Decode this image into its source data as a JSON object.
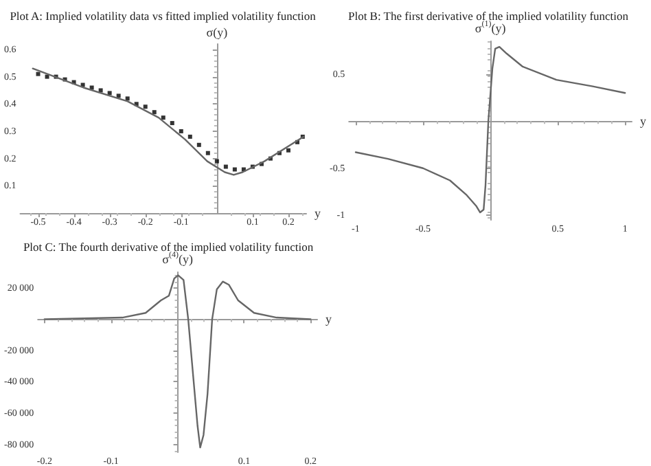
{
  "chart_data": [
    {
      "type": "scatter",
      "title": "Plot A: Implied volatility data vs fitted implied volatility function",
      "xlabel": "y",
      "ylabel": "σ(y)",
      "xlim": [
        -0.55,
        0.25
      ],
      "ylim": [
        0,
        0.62
      ],
      "xticks": [
        -0.5,
        -0.4,
        -0.3,
        -0.2,
        -0.1,
        0.1,
        0.2
      ],
      "yticks": [
        0.1,
        0.2,
        0.3,
        0.4,
        0.5,
        0.6
      ],
      "grid": false,
      "series": [
        {
          "marker": "square",
          "color": "#000000",
          "x": [
            -0.5,
            -0.475,
            -0.45,
            -0.425,
            -0.4,
            -0.375,
            -0.35,
            -0.325,
            -0.3,
            -0.275,
            -0.25,
            -0.225,
            -0.2,
            -0.175,
            -0.15,
            -0.125,
            -0.1,
            -0.075,
            -0.05,
            -0.025,
            0,
            0.025,
            0.05,
            0.075,
            0.1,
            0.125,
            0.15,
            0.175,
            0.2,
            0.225,
            0.24
          ],
          "values": [
            0.51,
            0.5,
            0.5,
            0.49,
            0.48,
            0.47,
            0.46,
            0.45,
            0.44,
            0.43,
            0.42,
            0.4,
            0.39,
            0.37,
            0.35,
            0.33,
            0.3,
            0.28,
            0.25,
            0.22,
            0.19,
            0.17,
            0.16,
            0.16,
            0.17,
            0.18,
            0.2,
            0.22,
            0.23,
            0.26,
            0.28
          ]
        },
        {
          "type": "line",
          "marker": "none",
          "color": "#666666",
          "x": [
            -0.515,
            -0.373,
            -0.25,
            -0.163,
            -0.089,
            -0.027,
            0.022,
            0.047,
            0.072,
            0.133,
            0.242
          ],
          "values": [
            0.53,
            0.46,
            0.41,
            0.35,
            0.27,
            0.19,
            0.15,
            0.14,
            0.15,
            0.19,
            0.28
          ]
        }
      ]
    },
    {
      "type": "line",
      "title": "Plot B: The first derivative of the implied volatility function",
      "xlabel": "y",
      "ylabel": "σ$^{(1)}$(y)",
      "xlim": [
        -1.05,
        1.05
      ],
      "ylim": [
        -1.05,
        0.85
      ],
      "xticks": [
        -1.0,
        -0.5,
        0.5,
        1.0
      ],
      "yticks": [
        -1.0,
        -0.5,
        0.5
      ],
      "grid": false,
      "series": [
        {
          "marker": "none",
          "color": "#666666",
          "x": [
            -1.0,
            -0.76,
            -0.5,
            -0.3,
            -0.18,
            -0.106,
            -0.076,
            -0.05,
            -0.036,
            -0.015,
            0.015,
            0.036,
            0.067,
            0.12,
            0.24,
            0.49,
            0.76,
            1.0
          ],
          "values": [
            -0.33,
            -0.4,
            -0.5,
            -0.63,
            -0.78,
            -0.9,
            -0.97,
            -0.94,
            -0.68,
            0,
            0.56,
            0.77,
            0.79,
            0.72,
            0.58,
            0.44,
            0.37,
            0.3
          ]
        }
      ]
    },
    {
      "type": "line",
      "title": "Plot C: The fourth derivative of the implied volatility function",
      "xlabel": "y",
      "ylabel": "σ$^{(4)}$(y)",
      "xlim": [
        -0.21,
        0.21
      ],
      "ylim": [
        -85000,
        30000
      ],
      "xticks": [
        -0.2,
        -0.1,
        0.1,
        0.2
      ],
      "yticks": [
        {
          "value": -80000,
          "label": "-80 000"
        },
        {
          "value": -60000,
          "label": "-60 000"
        },
        {
          "value": -40000,
          "label": "-40 000"
        },
        {
          "value": -20000,
          "label": "-20 000"
        },
        {
          "value": 20000,
          "label": "20 000"
        }
      ],
      "grid": false,
      "series": [
        {
          "marker": "none",
          "color": "#666666",
          "x": [
            -0.2,
            -0.083,
            -0.048,
            -0.025,
            -0.013,
            -0.005,
            0.001,
            0.009,
            0.016,
            0.024,
            0.03,
            0.034,
            0.039,
            0.045,
            0.052,
            0.059,
            0.068,
            0.077,
            0.091,
            0.115,
            0.149,
            0.2
          ],
          "values": [
            0,
            1000,
            4000,
            12000,
            15000,
            26000,
            28000,
            25000,
            0,
            -39000,
            -68000,
            -82000,
            -74000,
            -48000,
            0,
            19000,
            24000,
            22000,
            12000,
            4000,
            1000,
            0
          ]
        }
      ]
    }
  ]
}
